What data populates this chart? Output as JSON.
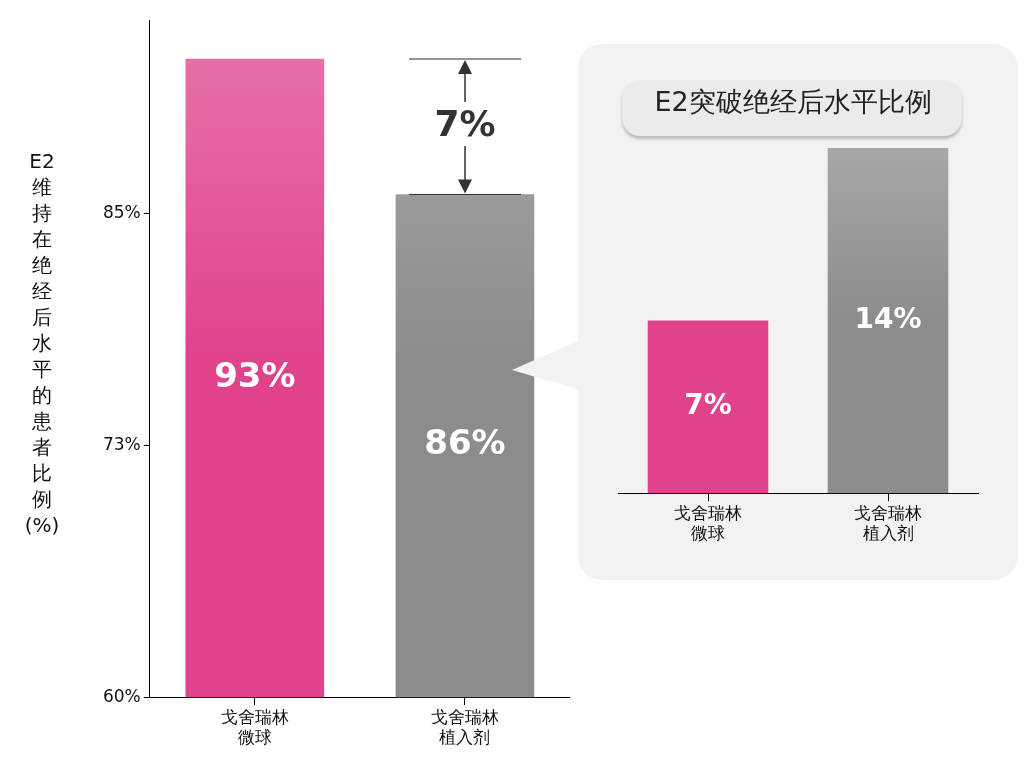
{
  "chart_data": [
    {
      "type": "bar",
      "ylabel": "E2维持在绝经后水平的患者比例(%)",
      "categories": [
        "戈舍瑞林微球",
        "戈舍瑞林植入剂"
      ],
      "values": [
        93,
        86
      ],
      "colors": [
        "#e0428c",
        "#8c8c8c"
      ],
      "value_labels": [
        "93%",
        "86%"
      ],
      "ylim": [
        60,
        95
      ],
      "yticks": [
        {
          "value": 60,
          "label": "60%"
        },
        {
          "value": 73,
          "label": "73%"
        },
        {
          "value": 85,
          "label": "85%"
        }
      ],
      "annotations": [
        "7%"
      ]
    },
    {
      "type": "bar",
      "title": "E2突破绝经后水平比例",
      "categories": [
        "戈舍瑞林微球",
        "戈舍瑞林植入剂"
      ],
      "values": [
        7,
        14
      ],
      "colors": [
        "#e0428c",
        "#8c8c8c"
      ],
      "value_labels": [
        "7%",
        "14%"
      ]
    }
  ]
}
